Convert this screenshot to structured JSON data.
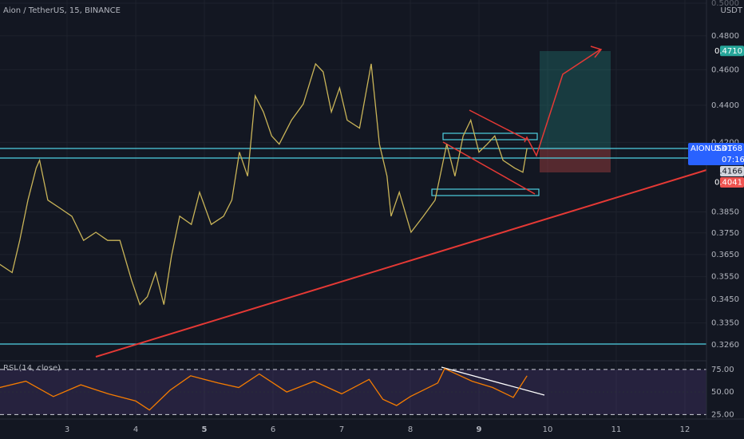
{
  "chart_data": [
    {
      "type": "line",
      "title": "Aion / TetherUS, 15, BINANCE",
      "unit": "USDT",
      "log": true,
      "grid": true,
      "x": [
        2.02,
        2.2,
        2.31,
        2.43,
        2.55,
        2.6,
        2.72,
        2.9,
        3.07,
        3.24,
        3.42,
        3.59,
        3.77,
        3.94,
        4.06,
        4.17,
        4.29,
        4.41,
        4.52,
        4.64,
        4.81,
        4.93,
        5.1,
        5.28,
        5.4,
        5.51,
        5.63,
        5.74,
        5.86,
        5.98,
        6.09,
        6.27,
        6.44,
        6.62,
        6.73,
        6.85,
        6.97,
        7.08,
        7.26,
        7.43,
        7.55,
        7.66,
        7.72,
        7.84,
        8.01,
        8.19,
        8.36,
        8.53,
        8.65,
        8.77,
        8.88,
        9.0,
        9.12,
        9.23,
        9.35,
        9.52,
        9.64,
        9.7
      ],
      "series": [
        {
          "name": "AIONUSDT",
          "color": "#c9b458",
          "values": [
            0.3605,
            0.3568,
            0.3715,
            0.3907,
            0.4067,
            0.4107,
            0.3907,
            0.3867,
            0.3829,
            0.3715,
            0.3753,
            0.3715,
            0.3715,
            0.3533,
            0.3428,
            0.3462,
            0.3568,
            0.3428,
            0.3641,
            0.3829,
            0.379,
            0.3946,
            0.379,
            0.3829,
            0.3907,
            0.4149,
            0.4026,
            0.4452,
            0.4363,
            0.4234,
            0.4191,
            0.4319,
            0.4407,
            0.4634,
            0.4588,
            0.4363,
            0.4497,
            0.4319,
            0.4276,
            0.4634,
            0.4191,
            0.4026,
            0.3829,
            0.3946,
            0.3753,
            0.3829,
            0.3907,
            0.4191,
            0.4026,
            0.4234,
            0.4319,
            0.4149,
            0.4191,
            0.4234,
            0.4107,
            0.4067,
            0.4046,
            0.417
          ]
        }
      ],
      "xlim": [
        2.023,
        12.314
      ],
      "xticks": [
        3,
        4,
        5,
        6,
        7,
        8,
        9,
        10,
        11,
        12
      ],
      "ylim": [
        0.3195,
        0.502
      ],
      "yticks": [
        {
          "value": 0.5,
          "label": "0.5000"
        },
        {
          "value": 0.48,
          "label": "0.4800"
        },
        {
          "value": 0.46,
          "label": "0.4600"
        },
        {
          "value": 0.44,
          "label": "0.4400"
        },
        {
          "value": 0.42,
          "label": "0.4200"
        },
        {
          "value": 0.385,
          "label": "0.3850"
        },
        {
          "value": 0.375,
          "label": "0.3750"
        },
        {
          "value": 0.365,
          "label": "0.3650"
        },
        {
          "value": 0.355,
          "label": "0.3550"
        },
        {
          "value": 0.345,
          "label": "0.3450"
        },
        {
          "value": 0.335,
          "label": "0.3350"
        },
        {
          "value": 0.326,
          "label": "0.3260"
        }
      ],
      "price_tags": [
        {
          "value": 0.471,
          "label": "0.4710",
          "color": "#26a69a"
        },
        {
          "name": "AIONUSDT",
          "value": 0.4168,
          "label": "0.4168",
          "color": "#2962ff",
          "countdown": "07:16"
        },
        {
          "value": 0.4166,
          "label": "0.4166",
          "color": "#d1d4dc"
        },
        {
          "value": 0.4041,
          "label": "0.4041",
          "color": "#ef5350"
        }
      ]
    },
    {
      "type": "line",
      "title": "RSI (14, close)",
      "x": [
        2.02,
        2.4,
        2.8,
        3.2,
        3.6,
        4.0,
        4.2,
        4.5,
        4.8,
        5.2,
        5.5,
        5.8,
        6.2,
        6.6,
        7.0,
        7.4,
        7.6,
        7.8,
        8.0,
        8.4,
        8.5,
        8.9,
        9.2,
        9.5,
        9.7
      ],
      "series": [
        {
          "color": "#f57c00",
          "values": [
            55,
            62,
            45,
            58,
            48,
            40,
            30,
            52,
            68,
            60,
            55,
            70,
            50,
            62,
            48,
            64,
            42,
            35,
            45,
            60,
            76,
            62,
            55,
            44,
            68
          ]
        }
      ],
      "ylim": [
        20,
        82
      ],
      "yticks": [
        {
          "value": 75,
          "label": "75.00"
        },
        {
          "value": 50,
          "label": "50.00"
        },
        {
          "value": 25,
          "label": "25.00"
        }
      ]
    }
  ]
}
